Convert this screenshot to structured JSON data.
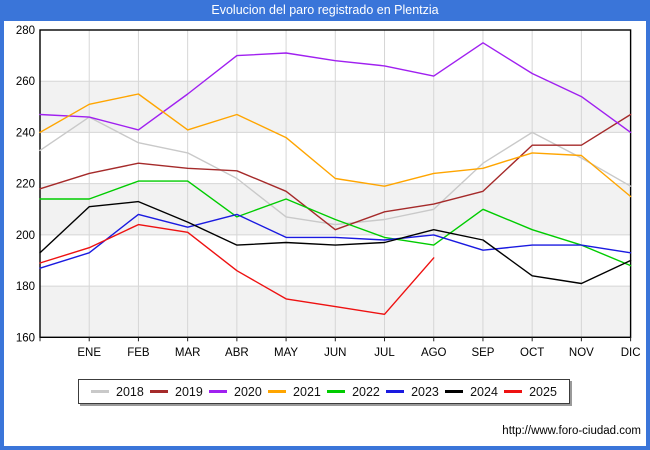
{
  "header": {
    "title": "Evolucion del paro registrado en Plentzia"
  },
  "footer": {
    "url": "http://www.foro-ciudad.com"
  },
  "colors": {
    "frame_blue": "#3a75d9",
    "plot_band": "#f2f2f2",
    "gridline": "#d6d6d6",
    "plot_border": "#000000"
  },
  "chart_data": {
    "type": "line",
    "title": "Evolucion del paro registrado en Plentzia",
    "xlabel": "",
    "ylabel": "",
    "x_labels": [
      "ENE",
      "FEB",
      "MAR",
      "ABR",
      "MAY",
      "JUN",
      "JUL",
      "AGO",
      "SEP",
      "OCT",
      "NOV",
      "DIC"
    ],
    "y_ticks": [
      160,
      180,
      200,
      220,
      240,
      260,
      280
    ],
    "ylim": [
      160,
      280
    ],
    "grid": true,
    "legend_position": "bottom",
    "series_note": "first value of each series is the left-edge starting point drawn before the ENE gridline; remaining values fall on the ENE..DIC gridlines",
    "series": [
      {
        "name": "2018",
        "color": "#c9c9c9",
        "values": [
          233,
          246,
          236,
          232,
          222,
          207,
          204,
          206,
          210,
          228,
          240,
          230,
          219
        ]
      },
      {
        "name": "2019",
        "color": "#a52a2a",
        "values": [
          218,
          224,
          228,
          226,
          225,
          217,
          202,
          209,
          212,
          217,
          235,
          235,
          247
        ]
      },
      {
        "name": "2020",
        "color": "#a020f0",
        "values": [
          247,
          246,
          241,
          255,
          270,
          271,
          268,
          266,
          262,
          275,
          263,
          254,
          240
        ]
      },
      {
        "name": "2021",
        "color": "#ffa500",
        "values": [
          240,
          251,
          255,
          241,
          247,
          238,
          222,
          219,
          224,
          226,
          232,
          231,
          215
        ]
      },
      {
        "name": "2022",
        "color": "#00cc00",
        "values": [
          214,
          214,
          221,
          221,
          207,
          214,
          206,
          199,
          196,
          210,
          202,
          196,
          188
        ]
      },
      {
        "name": "2023",
        "color": "#1a1ae0",
        "values": [
          187,
          193,
          208,
          203,
          208,
          199,
          199,
          198,
          200,
          194,
          196,
          196,
          193
        ]
      },
      {
        "name": "2024",
        "color": "#000000",
        "values": [
          193,
          211,
          213,
          205,
          196,
          197,
          196,
          197,
          202,
          198,
          184,
          181,
          190
        ]
      },
      {
        "name": "2025",
        "color": "#ee1111",
        "values": [
          189,
          195,
          204,
          201,
          186,
          175,
          172,
          169,
          191
        ]
      }
    ]
  }
}
